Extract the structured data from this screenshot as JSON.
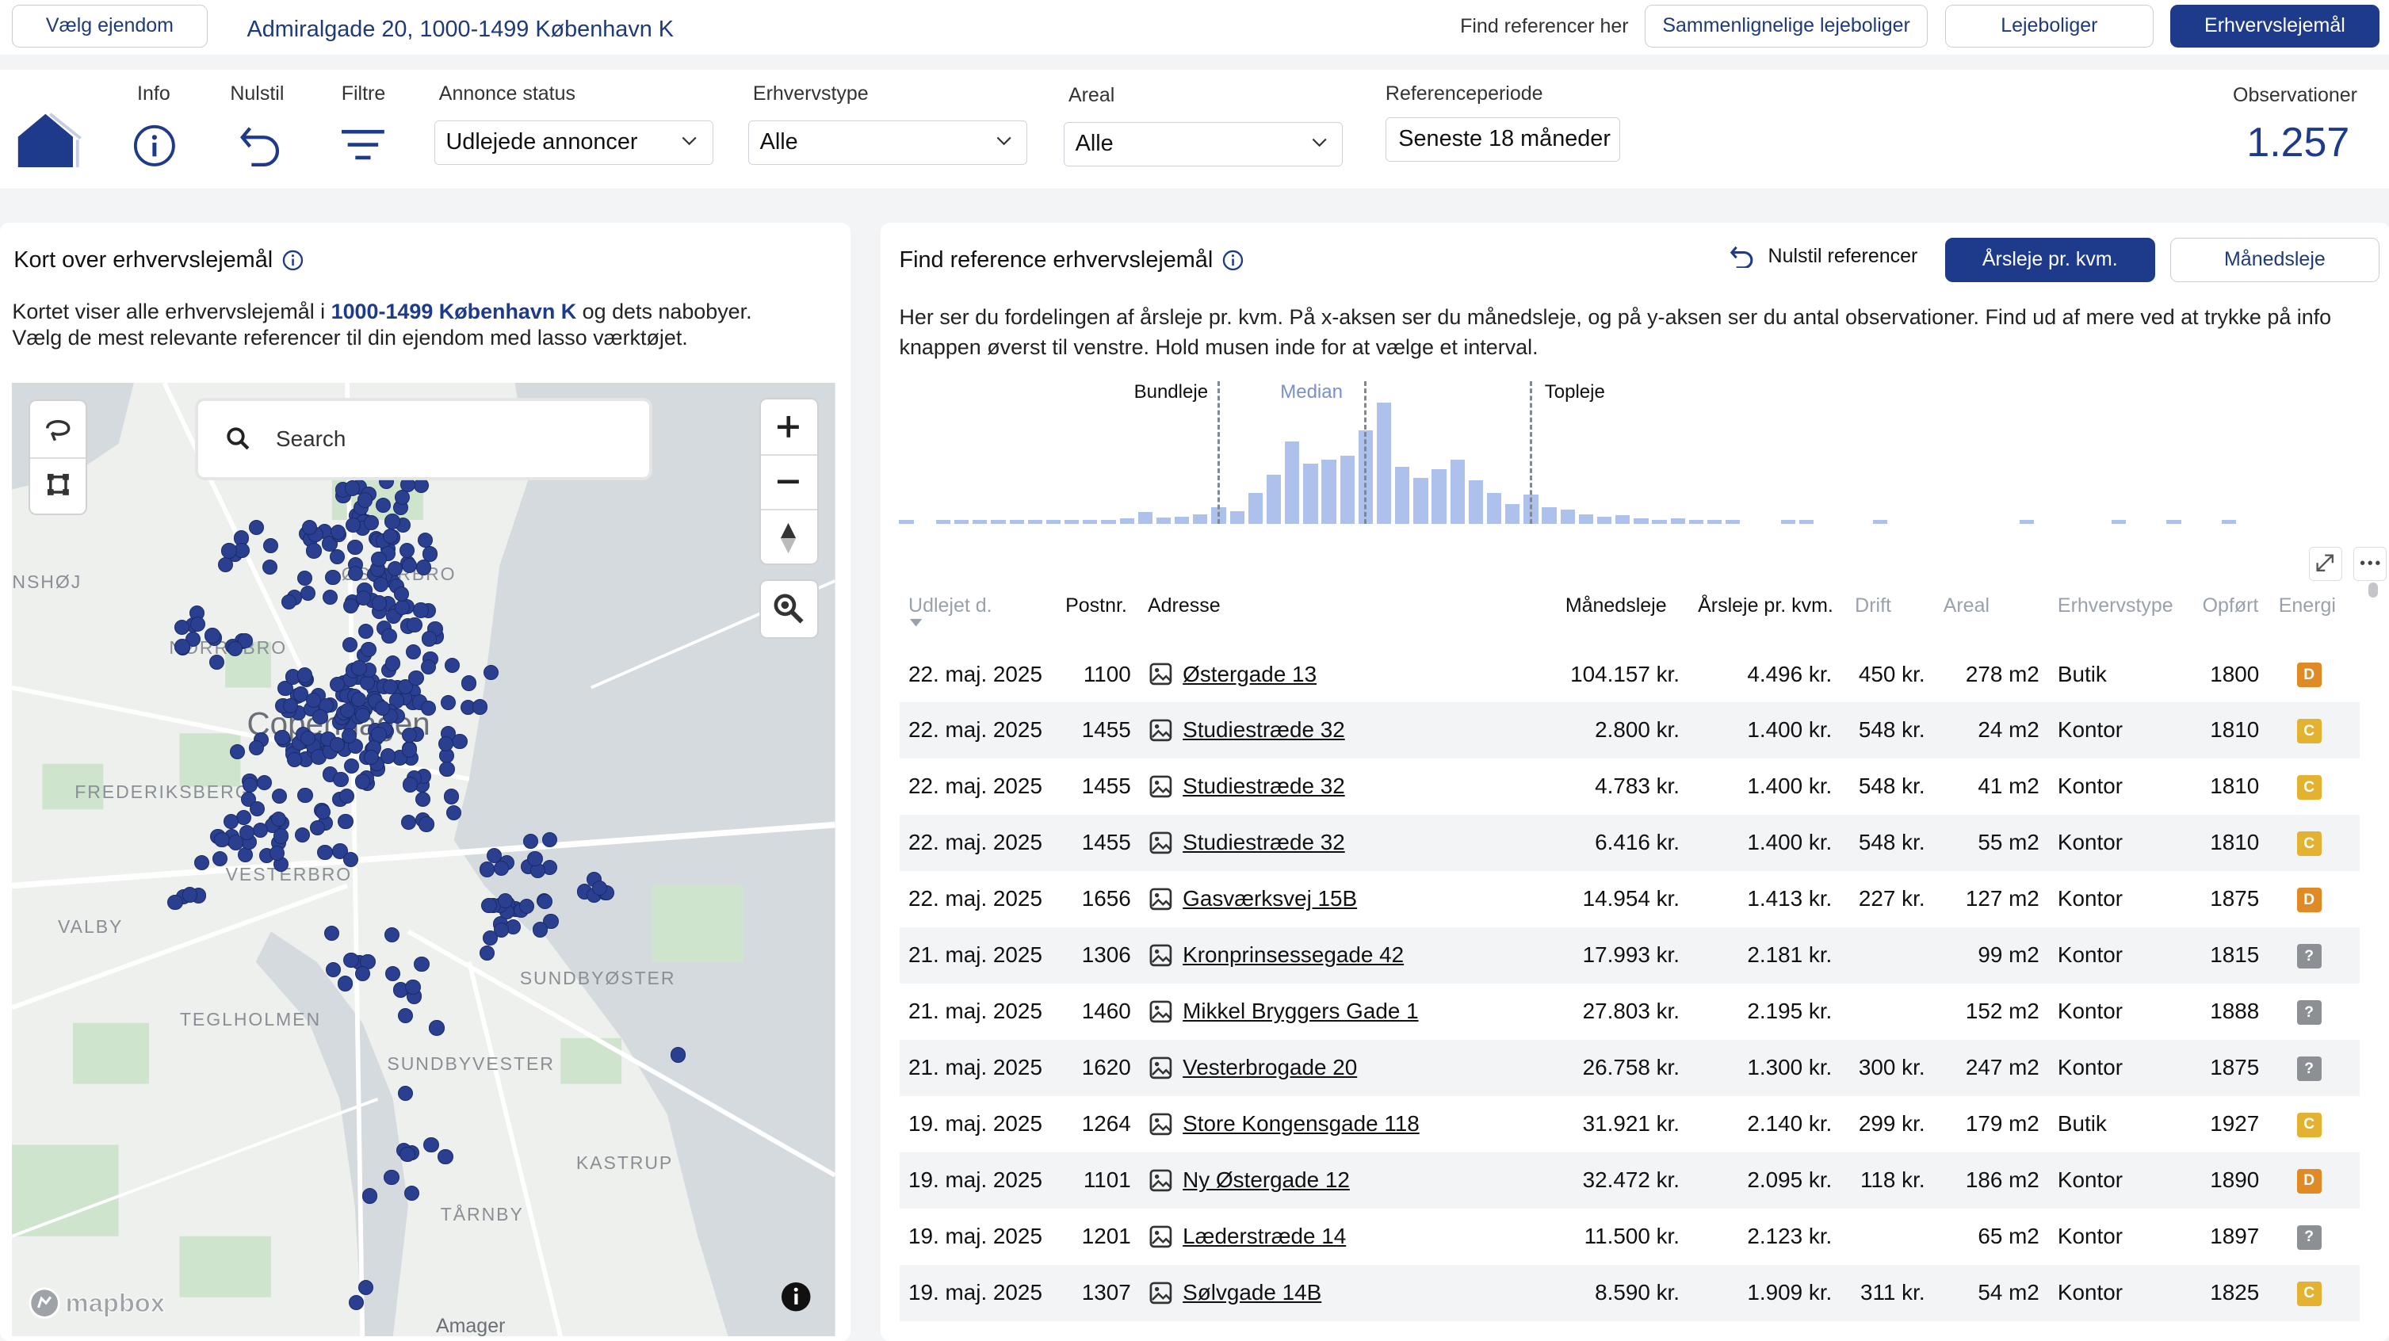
{
  "topbar": {
    "choose_property": "Vælg ejendom",
    "address": "Admiralgade 20, 1000-1499 København K",
    "find_refs": "Find referencer her",
    "tabs": [
      {
        "label": "Sammenlignelige lejeboliger",
        "active": false
      },
      {
        "label": "Lejeboliger",
        "active": false
      },
      {
        "label": "Erhvervslejemål",
        "active": true
      }
    ]
  },
  "filters": {
    "info": "Info",
    "reset": "Nulstil",
    "filters": "Filtre",
    "status_label": "Annonce status",
    "status_value": "Udlejede annoncer",
    "type_label": "Erhvervstype",
    "type_value": "Alle",
    "area_label": "Areal",
    "area_value": "Alle",
    "period_label": "Referenceperiode",
    "period_value": "Seneste 18 måneder",
    "obs_label": "Observationer",
    "obs_value": "1.257"
  },
  "map_panel": {
    "title": "Kort over erhvervslejemål",
    "desc_pre": "Kortet viser alle erhvervslejemål i ",
    "desc_bold": "1000-1499 København K",
    "desc_post": " og dets nabobyer.",
    "desc_line2": "Vælg de mest relevante referencer til din ejendom med lasso værktøjet.",
    "search_placeholder": "Search",
    "attribution": "mapbox",
    "places": [
      {
        "name": "ØSTERBRO"
      },
      {
        "name": "NØRREBRO"
      },
      {
        "name": "Copenhagen"
      },
      {
        "name": "FREDERIKSBERG"
      },
      {
        "name": "VESTERBRO"
      },
      {
        "name": "VALBY"
      },
      {
        "name": "SUNDBYØSTER"
      },
      {
        "name": "TEGLHOLMEN"
      },
      {
        "name": "SUNDBYVESTER"
      },
      {
        "name": "KASTRUP"
      },
      {
        "name": "TÅRNBY"
      },
      {
        "name": "Amager"
      },
      {
        "name": "NSHØJ"
      }
    ]
  },
  "ref_panel": {
    "title": "Find reference erhvervslejemål",
    "reset_refs": "Nulstil referencer",
    "mode_yearly": "Årsleje pr. kvm.",
    "mode_monthly": "Månedsleje",
    "desc": "Her ser du fordelingen af årsleje pr. kvm. På x-aksen ser du månedsleje, og på y-aksen ser du antal observationer. Find ud af mere ved at trykke på info knappen øverst til venstre. Hold musen inde for at vælge et interval.",
    "hist_labels": {
      "low": "Bundleje",
      "median": "Median",
      "high": "Topleje"
    }
  },
  "chart_data": {
    "type": "bar",
    "values": [
      1,
      0,
      1,
      1,
      2,
      2,
      2,
      2,
      2,
      3,
      2,
      3,
      5,
      11,
      6,
      7,
      9,
      15,
      12,
      28,
      45,
      75,
      55,
      58,
      62,
      85,
      110,
      52,
      42,
      50,
      58,
      40,
      28,
      18,
      27,
      15,
      13,
      9,
      7,
      8,
      5,
      3,
      5,
      4,
      3,
      2,
      0,
      0,
      3,
      2,
      0,
      0,
      0,
      1,
      0,
      0,
      0,
      0,
      0,
      0,
      0,
      1,
      0,
      0,
      0,
      0,
      1,
      0,
      0,
      1,
      0,
      0,
      1
    ],
    "markers": [
      {
        "label": "Bundleje",
        "index": 17
      },
      {
        "label": "Median",
        "index": 25
      },
      {
        "label": "Topleje",
        "index": 34
      }
    ]
  },
  "table": {
    "headers": [
      "Udlejet d.",
      "Postnr.",
      "Adresse",
      "Månedsleje",
      "Årsleje pr. kvm.",
      "Drift",
      "Areal",
      "Erhvervstype",
      "Opført",
      "Energi"
    ],
    "rows": [
      {
        "date": "22. maj. 2025",
        "zip": "1100",
        "addr": "Østergade 13",
        "month": "104.157 kr.",
        "year": "4.496 kr.",
        "drift": "450 kr.",
        "area": "278 m2",
        "type": "Butik",
        "built": "1800",
        "energy": "D"
      },
      {
        "date": "22. maj. 2025",
        "zip": "1455",
        "addr": "Studiestræde 32",
        "month": "2.800 kr.",
        "year": "1.400 kr.",
        "drift": "548 kr.",
        "area": "24 m2",
        "type": "Kontor",
        "built": "1810",
        "energy": "C"
      },
      {
        "date": "22. maj. 2025",
        "zip": "1455",
        "addr": "Studiestræde 32",
        "month": "4.783 kr.",
        "year": "1.400 kr.",
        "drift": "548 kr.",
        "area": "41 m2",
        "type": "Kontor",
        "built": "1810",
        "energy": "C"
      },
      {
        "date": "22. maj. 2025",
        "zip": "1455",
        "addr": "Studiestræde 32",
        "month": "6.416 kr.",
        "year": "1.400 kr.",
        "drift": "548 kr.",
        "area": "55 m2",
        "type": "Kontor",
        "built": "1810",
        "energy": "C"
      },
      {
        "date": "22. maj. 2025",
        "zip": "1656",
        "addr": "Gasværksvej 15B",
        "month": "14.954 kr.",
        "year": "1.413 kr.",
        "drift": "227 kr.",
        "area": "127 m2",
        "type": "Kontor",
        "built": "1875",
        "energy": "D"
      },
      {
        "date": "21. maj. 2025",
        "zip": "1306",
        "addr": "Kronprinsessegade 42",
        "month": "17.993 kr.",
        "year": "2.181 kr.",
        "drift": "",
        "area": "99 m2",
        "type": "Kontor",
        "built": "1815",
        "energy": "?"
      },
      {
        "date": "21. maj. 2025",
        "zip": "1460",
        "addr": "Mikkel Bryggers Gade 1",
        "month": "27.803 kr.",
        "year": "2.195 kr.",
        "drift": "",
        "area": "152 m2",
        "type": "Kontor",
        "built": "1888",
        "energy": "?"
      },
      {
        "date": "21. maj. 2025",
        "zip": "1620",
        "addr": "Vesterbrogade 20",
        "month": "26.758 kr.",
        "year": "1.300 kr.",
        "drift": "300 kr.",
        "area": "247 m2",
        "type": "Kontor",
        "built": "1875",
        "energy": "?"
      },
      {
        "date": "19. maj. 2025",
        "zip": "1264",
        "addr": "Store Kongensgade 118",
        "month": "31.921 kr.",
        "year": "2.140 kr.",
        "drift": "299 kr.",
        "area": "179 m2",
        "type": "Butik",
        "built": "1927",
        "energy": "C"
      },
      {
        "date": "19. maj. 2025",
        "zip": "1101",
        "addr": "Ny Østergade 12",
        "month": "32.472 kr.",
        "year": "2.095 kr.",
        "drift": "118 kr.",
        "area": "186 m2",
        "type": "Kontor",
        "built": "1890",
        "energy": "D"
      },
      {
        "date": "19. maj. 2025",
        "zip": "1201",
        "addr": "Læderstræde 14",
        "month": "11.500 kr.",
        "year": "2.123 kr.",
        "drift": "",
        "area": "65 m2",
        "type": "Kontor",
        "built": "1897",
        "energy": "?"
      },
      {
        "date": "19. maj. 2025",
        "zip": "1307",
        "addr": "Sølvgade 14B",
        "month": "8.590 kr.",
        "year": "1.909 kr.",
        "drift": "311 kr.",
        "area": "54 m2",
        "type": "Kontor",
        "built": "1825",
        "energy": "C"
      }
    ]
  },
  "colors": {
    "primary": "#1e3a8a",
    "bar": "#aec0ec",
    "energy_C": "#e3b230",
    "energy_D": "#e08a25",
    "energy_unknown": "#8c8f94"
  }
}
